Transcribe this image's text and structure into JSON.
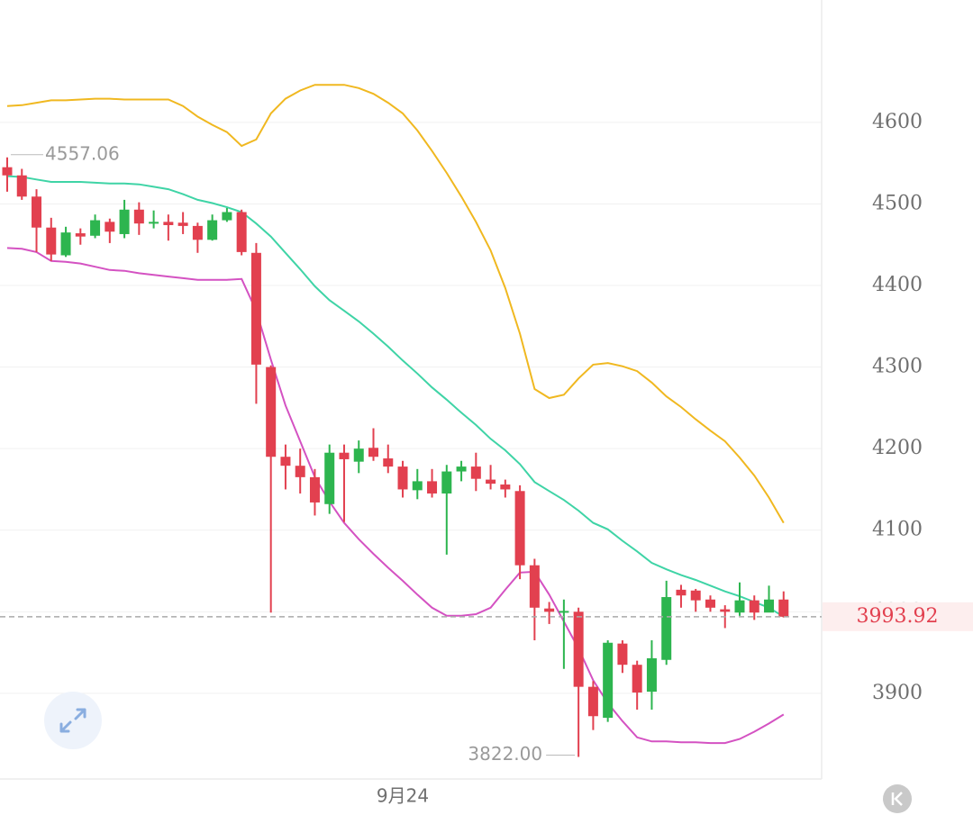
{
  "chart_data": {
    "type": "candlestick",
    "ylim": [
      3795,
      4750
    ],
    "yticks": [
      3900,
      4000,
      4100,
      4200,
      4300,
      4400,
      4500,
      4600
    ],
    "grid": true,
    "up_color": "#2db54f",
    "down_color": "#e2404f",
    "categories": [
      null,
      null,
      null,
      null,
      null,
      null,
      null,
      null,
      null,
      null,
      null,
      null,
      null,
      null,
      null,
      null,
      null,
      null,
      null,
      null,
      null,
      null,
      null,
      null,
      null,
      null,
      null,
      "9月24",
      null,
      null,
      null,
      null,
      null,
      null,
      null,
      null,
      null,
      null,
      null,
      null,
      null,
      null,
      null,
      null,
      null,
      null,
      null,
      null,
      null,
      null,
      null,
      null,
      null,
      null
    ],
    "open": [
      4545,
      4535,
      4509,
      4471,
      4437,
      4464,
      4461,
      4478,
      4463,
      4493,
      4476,
      4478,
      4477,
      4473,
      4456,
      4480,
      4490,
      4440,
      4300,
      4190,
      4179,
      4165,
      4132,
      4195,
      4184,
      4201,
      4188,
      4178,
      4149,
      4160,
      4145,
      4172,
      4178,
      4162,
      4156,
      4148,
      4057,
      4004,
      3999,
      4000,
      3908,
      3870,
      3961,
      3935,
      3902,
      3941,
      4027,
      4026,
      4015,
      4003,
      3999,
      4014,
      3999,
      4015
    ],
    "high": [
      4557.06,
      4543,
      4518,
      4483,
      4472,
      4470,
      4487,
      4482,
      4505,
      4502,
      4492,
      4487,
      4490,
      4477,
      4487,
      4495,
      4493,
      4452,
      4302,
      4205,
      4200,
      4175,
      4205,
      4205,
      4210,
      4225,
      4205,
      4185,
      4175,
      4175,
      4180,
      4185,
      4195,
      4180,
      4162,
      4155,
      4065,
      4012,
      4015,
      4005,
      3915,
      3965,
      3965,
      3940,
      3965,
      4038,
      4033,
      4028,
      4020,
      4008,
      4036,
      4020,
      4032,
      4025
    ],
    "low": [
      4515,
      4505,
      4441,
      4430,
      4435,
      4450,
      4458,
      4452,
      4458,
      4462,
      4470,
      4455,
      4463,
      4440,
      4455,
      4478,
      4437,
      4255,
      3999,
      4150,
      4145,
      4118,
      4120,
      4110,
      4170,
      4185,
      4170,
      4140,
      4138,
      4140,
      4070,
      4160,
      4148,
      4150,
      4140,
      4040,
      3965,
      3985,
      3930,
      3822,
      3855,
      3865,
      3925,
      3880,
      3880,
      3935,
      4005,
      4000,
      4000,
      3980,
      3995,
      3990,
      4000,
      3993
    ],
    "close": [
      4535,
      4509,
      4471,
      4438,
      4465,
      4460,
      4480,
      4466,
      4493,
      4476,
      4478,
      4474,
      4473,
      4456,
      4480,
      4490,
      4441,
      4303,
      4190,
      4179,
      4165,
      4134,
      4195,
      4187,
      4200,
      4190,
      4178,
      4150,
      4160,
      4145,
      4172,
      4178,
      4163,
      4157,
      4150,
      4057,
      4005,
      4000,
      4001,
      3908,
      3872,
      3962,
      3935,
      3901,
      3943,
      4018,
      4020,
      4014,
      4005,
      4000,
      4014,
      3999,
      4015,
      3993.92
    ],
    "high_label": "4557.06",
    "low_label": "3822.00",
    "last_label": "3993.92",
    "bands": {
      "upper": {
        "color": "#f0b820",
        "values": [
          4620,
          4621,
          4624,
          4627,
          4627,
          4628,
          4629,
          4629,
          4628,
          4628,
          4628,
          4628,
          4620,
          4607,
          4597,
          4588,
          4571,
          4579,
          4611,
          4629,
          4639,
          4646,
          4646,
          4646,
          4642,
          4635,
          4624,
          4611,
          4590,
          4565,
          4538,
          4509,
          4478,
          4443,
          4397,
          4341,
          4273,
          4262,
          4266,
          4286,
          4303,
          4305,
          4301,
          4295,
          4281,
          4264,
          4251,
          4236,
          4222,
          4209,
          4189,
          4167,
          4140,
          4109
        ]
      },
      "mid": {
        "color": "#3fd4a6",
        "values": [
          4534,
          4533,
          4530,
          4527,
          4527,
          4527,
          4526,
          4525,
          4525,
          4524,
          4521,
          4518,
          4512,
          4505,
          4501,
          4496,
          4490,
          4476,
          4460,
          4440,
          4420,
          4399,
          4382,
          4369,
          4356,
          4341,
          4325,
          4308,
          4292,
          4275,
          4260,
          4244,
          4229,
          4212,
          4198,
          4181,
          4159,
          4148,
          4137,
          4124,
          4109,
          4101,
          4087,
          4074,
          4060,
          4052,
          4045,
          4039,
          4032,
          4025,
          4019,
          4012,
          4005,
          3994
        ]
      },
      "lower": {
        "color": "#d452c2",
        "values": [
          4446,
          4445,
          4441,
          4430,
          4429,
          4427,
          4423,
          4419,
          4418,
          4415,
          4413,
          4411,
          4409,
          4407,
          4407,
          4407,
          4408,
          4369,
          4309,
          4253,
          4209,
          4165,
          4135,
          4109,
          4089,
          4071,
          4054,
          4038,
          4021,
          4005,
          3995,
          3995,
          3997,
          4005,
          4027,
          4048,
          4049,
          4021,
          3988,
          3955,
          3916,
          3888,
          3866,
          3846,
          3841,
          3841,
          3840,
          3840,
          3839,
          3839,
          3844,
          3853,
          3863,
          3874
        ]
      }
    }
  }
}
